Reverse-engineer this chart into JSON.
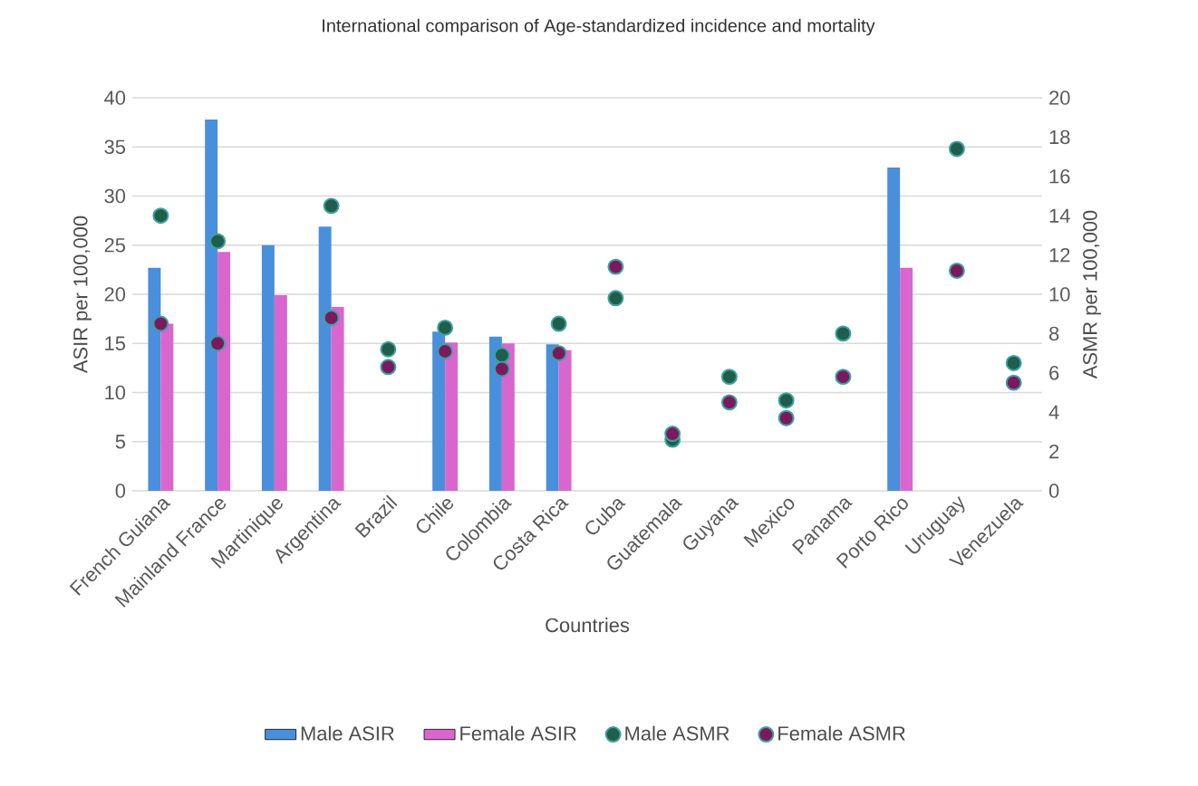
{
  "chart_data": {
    "type": "bar",
    "title": "International comparison of Age-standardized incidence and mortality",
    "xlabel": "Countries",
    "ylabel": "ASIR per 100,000",
    "y2label": "ASMR per 100,000",
    "categories": [
      "French Guiana",
      "Mainland France",
      "Martinique",
      "Argentina",
      "Brazil",
      "Chile",
      "Colombia",
      "Costa Rica",
      "Cuba",
      "Guatemala",
      "Guyana",
      "Mexico",
      "Panama",
      "Porto Rico",
      "Uruguay",
      "Venezuela"
    ],
    "series": [
      {
        "name": "Male ASIR",
        "color": "#4a8fdc",
        "values": [
          22.7,
          37.8,
          25.0,
          26.9,
          null,
          16.2,
          15.7,
          14.9,
          null,
          null,
          null,
          null,
          null,
          32.9,
          null,
          null
        ]
      },
      {
        "name": "Female ASIR",
        "color": "#d966cf",
        "values": [
          17.0,
          24.3,
          19.9,
          18.7,
          null,
          15.1,
          15.0,
          14.3,
          null,
          null,
          null,
          null,
          null,
          22.7,
          null,
          null
        ]
      },
      {
        "name": "Male ASMR",
        "type": "scatter",
        "axis": "y2",
        "color": "#1e5e4a",
        "values": [
          14.0,
          12.7,
          null,
          14.5,
          7.2,
          8.3,
          6.9,
          8.5,
          9.8,
          2.6,
          5.8,
          4.6,
          8.0,
          null,
          17.4,
          6.5
        ]
      },
      {
        "name": "Female ASMR",
        "type": "scatter",
        "axis": "y2",
        "color": "#7a1a5e",
        "values": [
          8.5,
          7.5,
          null,
          8.8,
          6.3,
          7.1,
          6.2,
          7.0,
          11.4,
          2.9,
          4.5,
          3.7,
          5.8,
          null,
          11.2,
          5.5
        ]
      }
    ],
    "ylim": [
      0,
      40
    ],
    "yticks": [
      0,
      5,
      10,
      15,
      20,
      25,
      30,
      35,
      40
    ],
    "y2lim": [
      0,
      20
    ],
    "y2ticks": [
      0,
      2,
      4,
      6,
      8,
      10,
      12,
      14,
      16,
      18,
      20
    ],
    "grid": "y",
    "legend": "bottom"
  }
}
